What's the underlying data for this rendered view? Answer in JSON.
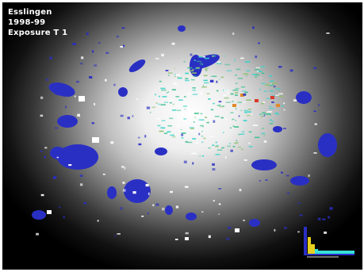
{
  "title": {
    "line1": "Esslingen",
    "line2": "1998-99",
    "line3": "Exposure T 1"
  },
  "colors": {
    "background_center": "#ffffff",
    "background_edge": "#000000",
    "cluster_blue": "#2a2fc4",
    "node_green": "#3fbf8f",
    "node_cyan": "#34d3c8",
    "node_orange": "#e08a2a",
    "node_red": "#d83a2a",
    "label_white": "#ffffff",
    "legend_yellow": "#e8d020",
    "legend_cyan": "#39e0d8"
  },
  "icons": {
    "legend": "histogram-legend-icon"
  }
}
